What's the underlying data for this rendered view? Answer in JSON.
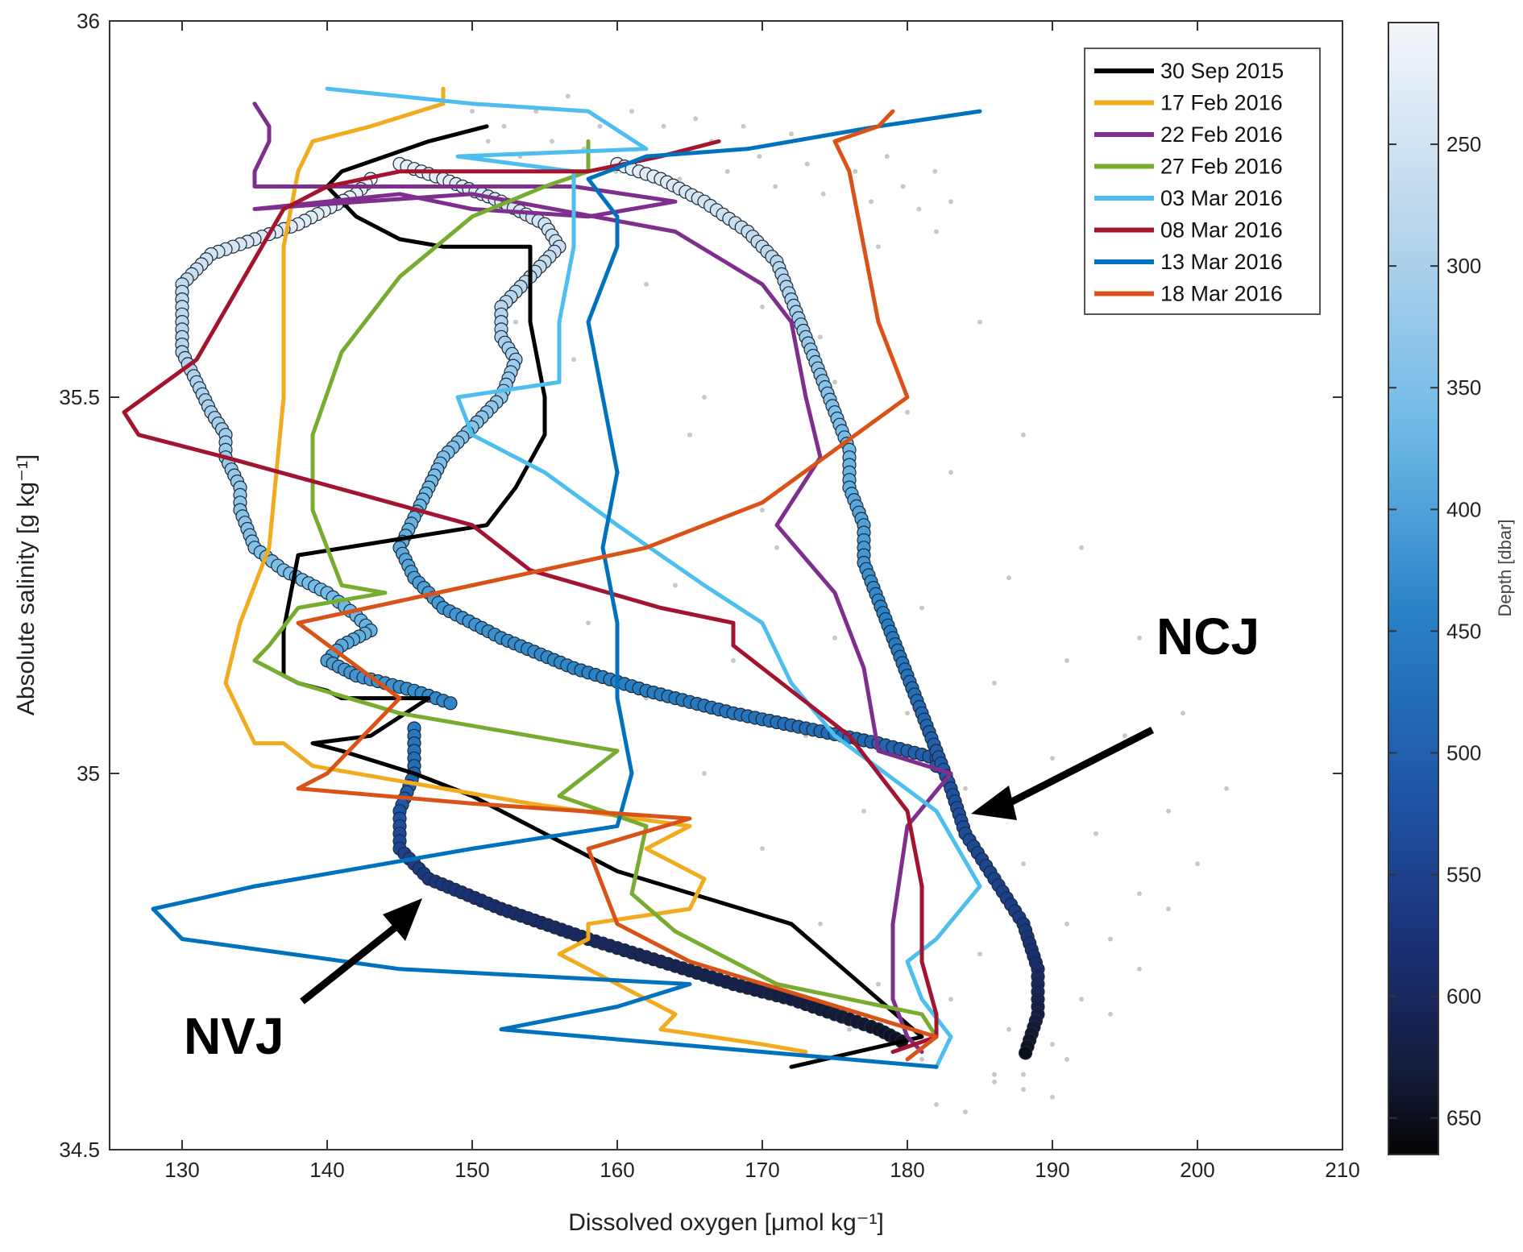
{
  "chart_data": {
    "type": "line",
    "xlabel": "Dissolved oxygen [μmol kg⁻¹]",
    "ylabel": "Absolute salinity [g kg⁻¹]",
    "xlim": [
      125,
      210
    ],
    "ylim": [
      34.5,
      36
    ],
    "x_ticks": [
      "130",
      "140",
      "150",
      "160",
      "170",
      "180",
      "190",
      "200",
      "210"
    ],
    "y_ticks": [
      "34.5",
      "35",
      "35.5",
      "36"
    ],
    "grid": false,
    "legend_position": "top-right",
    "colorbar": {
      "label": "Depth [dbar]",
      "range": [
        200,
        665
      ],
      "reversed": true,
      "ticks": [
        "250",
        "300",
        "350",
        "400",
        "450",
        "500",
        "550",
        "600",
        "650"
      ],
      "colormap_top": "#f2f4f8",
      "colormap_mid": "#2a7fc4",
      "colormap_deep": "#1d2f7a",
      "colormap_bottom": "#050505"
    },
    "annotations": [
      {
        "text": "NCJ",
        "x": 197,
        "y": 35.2
      },
      {
        "text": "NVJ",
        "x": 139,
        "y": 34.69
      }
    ],
    "series": [
      {
        "name": "30 Sep 2015",
        "color": "#000000",
        "x": [
          151,
          147,
          144,
          141,
          140,
          142,
          145,
          148,
          154,
          154,
          155,
          155,
          153,
          151,
          138,
          137,
          137,
          138,
          140,
          141,
          143,
          147,
          143,
          139,
          141,
          146,
          150,
          160,
          172,
          181,
          172
        ],
        "y": [
          35.86,
          35.84,
          35.82,
          35.8,
          35.78,
          35.74,
          35.71,
          35.7,
          35.7,
          35.6,
          35.5,
          35.45,
          35.38,
          35.33,
          35.29,
          35.19,
          35.13,
          35.12,
          35.11,
          35.1,
          35.1,
          35.1,
          35.05,
          35.04,
          35.03,
          35.0,
          34.97,
          34.87,
          34.8,
          34.65,
          34.61
        ]
      },
      {
        "name": "17 Feb 2016",
        "color": "#f0ab1e",
        "x": [
          148,
          148,
          143,
          139,
          138,
          137,
          137,
          136,
          134,
          133,
          135,
          137,
          139,
          154,
          165,
          162,
          166,
          165,
          158,
          158,
          156,
          158,
          162,
          164,
          163,
          170,
          173
        ],
        "y": [
          35.91,
          35.89,
          35.86,
          35.84,
          35.8,
          35.7,
          35.5,
          35.3,
          35.2,
          35.12,
          35.04,
          35.04,
          35.01,
          34.96,
          34.93,
          34.9,
          34.86,
          34.82,
          34.8,
          34.78,
          34.76,
          34.74,
          34.7,
          34.68,
          34.66,
          34.64,
          34.63
        ]
      },
      {
        "name": "22 Feb 2016",
        "color": "#7e2f8e",
        "x": [
          135,
          136,
          136,
          135,
          135,
          157,
          164,
          158,
          150,
          145,
          135,
          150,
          164,
          170,
          172,
          173,
          174,
          171,
          175,
          177,
          178,
          183,
          180,
          179,
          179,
          180,
          181
        ],
        "y": [
          35.89,
          35.86,
          35.84,
          35.8,
          35.78,
          35.78,
          35.76,
          35.74,
          35.75,
          35.77,
          35.75,
          35.77,
          35.72,
          35.65,
          35.6,
          35.5,
          35.42,
          35.33,
          35.24,
          35.14,
          35.03,
          35.0,
          34.93,
          34.8,
          34.7,
          34.65,
          34.63
        ]
      },
      {
        "name": "27 Feb 2016",
        "color": "#77ac30",
        "x": [
          158,
          158,
          155,
          150,
          145,
          141,
          139,
          139,
          140,
          141,
          144,
          138,
          136,
          135,
          138,
          145,
          154,
          160,
          156,
          162,
          161,
          164,
          171,
          181,
          182
        ],
        "y": [
          35.84,
          35.8,
          35.78,
          35.74,
          35.66,
          35.56,
          35.45,
          35.35,
          35.3,
          35.25,
          35.24,
          35.22,
          35.17,
          35.15,
          35.12,
          35.08,
          35.05,
          35.03,
          34.97,
          34.93,
          34.84,
          34.79,
          34.72,
          34.68,
          34.65
        ]
      },
      {
        "name": "03 Mar 2016",
        "color": "#4dbeee",
        "x": [
          140,
          150,
          158,
          162,
          149,
          157,
          157,
          156,
          156,
          149,
          150,
          155,
          160,
          166,
          170,
          172,
          175,
          182,
          185,
          182,
          180,
          181,
          183,
          182
        ],
        "y": [
          35.91,
          35.89,
          35.88,
          35.83,
          35.82,
          35.8,
          35.7,
          35.6,
          35.52,
          35.5,
          35.45,
          35.4,
          35.33,
          35.25,
          35.2,
          35.12,
          35.05,
          34.95,
          34.85,
          34.78,
          34.75,
          34.7,
          34.65,
          34.61
        ]
      },
      {
        "name": "08 Mar 2016",
        "color": "#a2142f",
        "x": [
          167,
          163,
          158,
          145,
          140,
          137,
          134,
          131,
          126,
          127,
          133,
          150,
          154,
          163,
          168,
          168,
          176,
          180,
          181,
          181,
          182,
          182,
          179
        ],
        "y": [
          35.84,
          35.82,
          35.8,
          35.8,
          35.78,
          35.75,
          35.65,
          35.55,
          35.48,
          35.45,
          35.42,
          35.33,
          35.27,
          35.22,
          35.2,
          35.17,
          35.05,
          34.95,
          34.85,
          34.75,
          34.68,
          34.65,
          34.63
        ]
      },
      {
        "name": "13 Mar 2016",
        "color": "#0072bd",
        "x": [
          185,
          178,
          169,
          162,
          158,
          160,
          160,
          158,
          159,
          160,
          159,
          160,
          160,
          161,
          160,
          150,
          135,
          128,
          130,
          145,
          165,
          160,
          152,
          182
        ],
        "y": [
          35.88,
          35.86,
          35.83,
          35.82,
          35.79,
          35.74,
          35.7,
          35.6,
          35.5,
          35.4,
          35.3,
          35.2,
          35.1,
          35.0,
          34.93,
          34.9,
          34.85,
          34.82,
          34.78,
          34.74,
          34.72,
          34.69,
          34.66,
          34.61
        ]
      },
      {
        "name": "18 Mar 2016",
        "color": "#d95319",
        "x": [
          179,
          178,
          175,
          176,
          177,
          178,
          180,
          170,
          162,
          150,
          138,
          145,
          140,
          138,
          150,
          165,
          158,
          159,
          160,
          165,
          182,
          180
        ],
        "y": [
          35.88,
          35.86,
          35.84,
          35.8,
          35.7,
          35.6,
          35.5,
          35.36,
          35.3,
          35.25,
          35.2,
          35.1,
          35.0,
          34.98,
          34.96,
          34.94,
          34.9,
          34.85,
          34.8,
          34.75,
          34.65,
          34.62
        ]
      }
    ],
    "scatter_depth": [
      {
        "x": [
          143,
          142,
          138,
          135,
          132,
          131,
          130,
          130,
          130,
          131,
          132,
          133,
          133,
          134,
          134,
          135,
          137,
          140,
          142,
          143,
          141,
          140,
          142,
          146,
          149
        ],
        "y": [
          35.79,
          35.77,
          35.73,
          35.71,
          35.69,
          35.67,
          35.65,
          35.6,
          35.56,
          35.52,
          35.48,
          35.45,
          35.42,
          35.38,
          35.35,
          35.3,
          35.27,
          35.24,
          35.21,
          35.19,
          35.17,
          35.15,
          35.13,
          35.11,
          35.09
        ],
        "depth": [
          205,
          215,
          225,
          235,
          245,
          255,
          265,
          275,
          282,
          290,
          298,
          306,
          314,
          322,
          330,
          338,
          346,
          354,
          362,
          370,
          380,
          392,
          404,
          416,
          428
        ]
      },
      {
        "x": [
          145,
          148,
          152,
          155,
          156,
          154,
          152,
          152,
          153,
          152,
          150,
          148,
          147,
          146,
          145,
          146,
          148,
          152,
          157,
          162,
          168,
          173,
          178,
          182,
          182
        ],
        "y": [
          35.81,
          35.79,
          35.76,
          35.73,
          35.7,
          35.66,
          35.62,
          35.58,
          35.55,
          35.5,
          35.46,
          35.42,
          35.38,
          35.34,
          35.3,
          35.26,
          35.22,
          35.18,
          35.14,
          35.11,
          35.08,
          35.06,
          35.04,
          35.02,
          35.0
        ],
        "depth": [
          210,
          222,
          234,
          246,
          258,
          270,
          282,
          294,
          306,
          318,
          330,
          342,
          354,
          366,
          378,
          390,
          402,
          414,
          426,
          438,
          450,
          462,
          474,
          486,
          498
        ]
      },
      {
        "x": [
          160,
          163,
          166,
          169,
          171,
          172,
          173,
          174,
          175,
          176,
          176,
          177,
          177,
          178,
          179,
          180,
          181,
          182,
          183,
          184,
          186,
          188,
          189,
          189,
          188
        ],
        "y": [
          35.81,
          35.79,
          35.76,
          35.72,
          35.68,
          35.63,
          35.58,
          35.53,
          35.48,
          35.43,
          35.38,
          35.33,
          35.28,
          35.23,
          35.18,
          35.13,
          35.08,
          35.03,
          34.98,
          34.92,
          34.86,
          34.8,
          34.74,
          34.68,
          34.62
        ],
        "depth": [
          214,
          230,
          246,
          262,
          278,
          294,
          310,
          326,
          342,
          358,
          374,
          390,
          406,
          422,
          438,
          454,
          470,
          486,
          502,
          518,
          534,
          550,
          580,
          620,
          655
        ]
      },
      {
        "x": [
          146,
          146,
          145,
          145,
          147,
          152,
          158,
          163,
          168,
          172,
          175,
          178,
          180
        ],
        "y": [
          35.06,
          35.0,
          34.95,
          34.9,
          34.86,
          34.82,
          34.78,
          34.75,
          34.72,
          34.7,
          34.68,
          34.66,
          34.64
        ],
        "depth": [
          440,
          470,
          500,
          530,
          555,
          575,
          590,
          600,
          610,
          620,
          630,
          640,
          650
        ]
      }
    ],
    "background_points_color": "#c8c8c8",
    "background_points": {
      "x": [
        150.0,
        151.1,
        152.2,
        153.3,
        154.4,
        155.5,
        156.6,
        157.7,
        158.8,
        159.9,
        161.0,
        162.1,
        163.2,
        164.3,
        165.4,
        166.5,
        167.6,
        168.7,
        169.8,
        170.9,
        172.0,
        173.1,
        174.2,
        175.3,
        176.4,
        177.5,
        178.6,
        179.7,
        180.8,
        181.9,
        183.0,
        153,
        157,
        162,
        166,
        170,
        174,
        178,
        182,
        160,
        165,
        170,
        175,
        180,
        185,
        158,
        164,
        171,
        177,
        183,
        188,
        162,
        168,
        175,
        181,
        187,
        192,
        166,
        173,
        180,
        186,
        191,
        196,
        170,
        177,
        184,
        190,
        195,
        199,
        174,
        181,
        188,
        193,
        198,
        202,
        178,
        185,
        191,
        196,
        200,
        176,
        183,
        189,
        194,
        198,
        181,
        187,
        192,
        196,
        186,
        190,
        194,
        188,
        191,
        182,
        186,
        190,
        184,
        188
      ],
      "y": [
        35.88,
        35.84,
        35.86,
        35.82,
        35.88,
        35.84,
        35.9,
        35.83,
        35.86,
        35.8,
        35.88,
        35.82,
        35.86,
        35.79,
        35.87,
        35.84,
        35.8,
        35.86,
        35.82,
        35.78,
        35.85,
        35.81,
        35.77,
        35.84,
        35.8,
        35.76,
        35.82,
        35.78,
        35.75,
        35.8,
        35.76,
        35.6,
        35.55,
        35.65,
        35.5,
        35.62,
        35.58,
        35.7,
        35.72,
        35.4,
        35.45,
        35.35,
        35.52,
        35.48,
        35.6,
        35.2,
        35.25,
        35.3,
        35.35,
        35.4,
        35.45,
        35.1,
        35.15,
        35.18,
        35.22,
        35.26,
        35.3,
        35.0,
        35.05,
        35.08,
        35.12,
        35.15,
        35.18,
        34.9,
        34.95,
        34.98,
        35.02,
        35.05,
        35.08,
        34.8,
        34.85,
        34.88,
        34.92,
        34.95,
        34.98,
        34.72,
        34.76,
        34.8,
        34.84,
        34.88,
        34.66,
        34.7,
        34.74,
        34.78,
        34.82,
        34.62,
        34.66,
        34.7,
        34.74,
        34.6,
        34.64,
        34.68,
        34.58,
        34.62,
        34.56,
        34.59,
        34.57,
        34.55,
        34.6
      ]
    }
  }
}
